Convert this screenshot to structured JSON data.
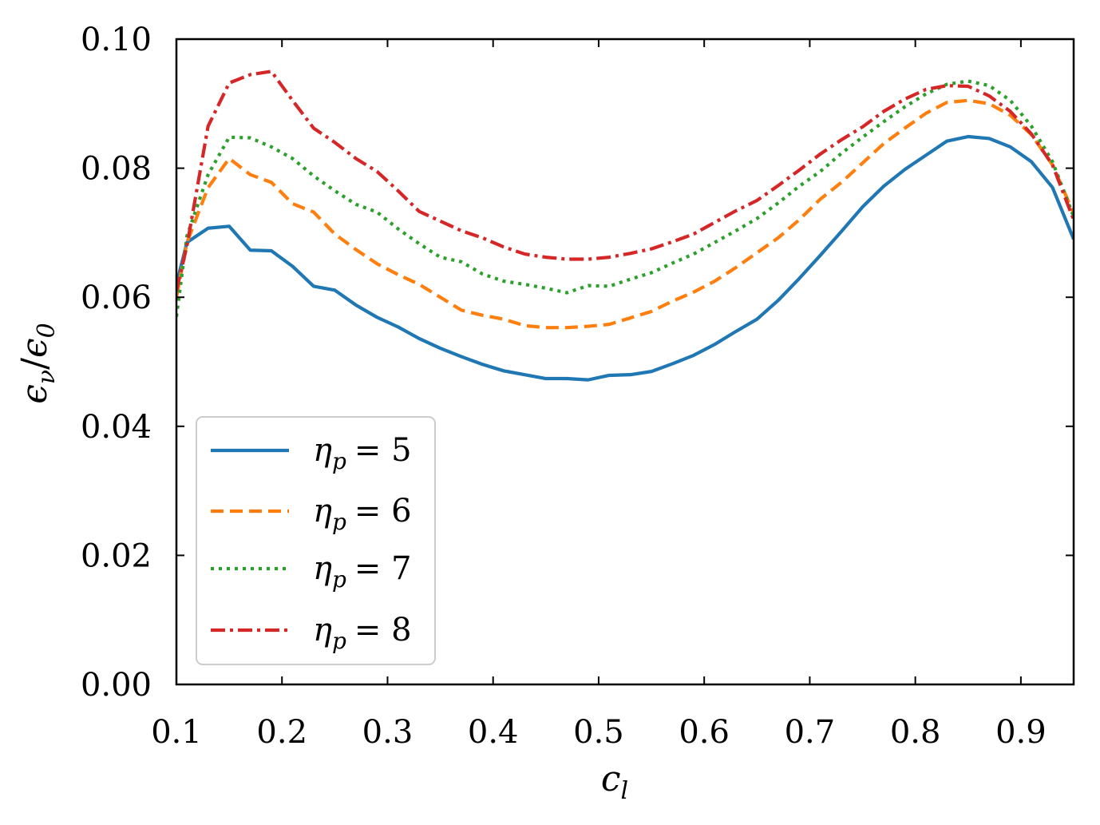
{
  "chart_data": {
    "type": "line",
    "title": "",
    "xlabel": "c_l",
    "xlabel_main": "c",
    "xlabel_sub": "l",
    "ylabel": "ϵ_ν/ϵ_0",
    "ylabel_parts": {
      "a": "ϵ",
      "a_sub": "ν",
      "slash": "/",
      "b": "ϵ",
      "b_sub": "0"
    },
    "xlim": [
      0.1,
      0.95
    ],
    "ylim": [
      0.0,
      0.1
    ],
    "xticks": [
      "0.1",
      "0.2",
      "0.3",
      "0.4",
      "0.5",
      "0.6",
      "0.7",
      "0.8",
      "0.9"
    ],
    "yticks": [
      "0.00",
      "0.02",
      "0.04",
      "0.06",
      "0.08",
      "0.10"
    ],
    "legend_location": "lower-left",
    "x": [
      0.1,
      0.11,
      0.13,
      0.15,
      0.17,
      0.19,
      0.21,
      0.23,
      0.25,
      0.27,
      0.29,
      0.31,
      0.33,
      0.35,
      0.37,
      0.39,
      0.41,
      0.43,
      0.45,
      0.47,
      0.49,
      0.51,
      0.53,
      0.55,
      0.57,
      0.59,
      0.61,
      0.63,
      0.65,
      0.67,
      0.69,
      0.71,
      0.73,
      0.75,
      0.77,
      0.79,
      0.81,
      0.83,
      0.85,
      0.87,
      0.89,
      0.91,
      0.93,
      0.95
    ],
    "series": [
      {
        "name": "η_p = 5",
        "label_main": "η",
        "label_sub": "p",
        "label_value": "= 5",
        "color": "#1f77b4",
        "dash": "solid",
        "values": [
          0.062,
          0.0685,
          0.0707,
          0.071,
          0.0673,
          0.0672,
          0.0648,
          0.0617,
          0.0611,
          0.0588,
          0.0569,
          0.0554,
          0.0536,
          0.0521,
          0.0508,
          0.0496,
          0.0486,
          0.048,
          0.0474,
          0.0474,
          0.0472,
          0.0479,
          0.048,
          0.0485,
          0.0497,
          0.051,
          0.0527,
          0.0547,
          0.0566,
          0.0595,
          0.0629,
          0.0665,
          0.0702,
          0.074,
          0.0772,
          0.0798,
          0.082,
          0.0842,
          0.0849,
          0.0846,
          0.0833,
          0.081,
          0.077,
          0.069
        ]
      },
      {
        "name": "η_p = 6",
        "label_main": "η",
        "label_sub": "p",
        "label_value": "= 6",
        "color": "#ff7f0e",
        "dash": "dashed",
        "values": [
          0.06,
          0.0685,
          0.077,
          0.0815,
          0.079,
          0.0778,
          0.0745,
          0.0732,
          0.0698,
          0.0674,
          0.0652,
          0.0635,
          0.062,
          0.06,
          0.058,
          0.0572,
          0.0566,
          0.0556,
          0.0553,
          0.0553,
          0.0555,
          0.0558,
          0.0568,
          0.0578,
          0.0594,
          0.0608,
          0.0625,
          0.0646,
          0.0669,
          0.0692,
          0.072,
          0.0752,
          0.0778,
          0.0808,
          0.0838,
          0.0862,
          0.0885,
          0.0902,
          0.0905,
          0.09,
          0.0882,
          0.0852,
          0.0805,
          0.073
        ]
      },
      {
        "name": "η_p = 7",
        "label_main": "η",
        "label_sub": "p",
        "label_value": "= 7",
        "color": "#2ca02c",
        "dash": "dotted",
        "values": [
          0.057,
          0.0695,
          0.079,
          0.0848,
          0.0847,
          0.0833,
          0.0815,
          0.0788,
          0.0765,
          0.0744,
          0.0732,
          0.0706,
          0.0683,
          0.0662,
          0.0655,
          0.0636,
          0.0625,
          0.062,
          0.0614,
          0.0607,
          0.0618,
          0.0617,
          0.0628,
          0.0638,
          0.0653,
          0.0667,
          0.0685,
          0.0703,
          0.0722,
          0.0746,
          0.0772,
          0.0795,
          0.0823,
          0.0848,
          0.0872,
          0.0895,
          0.0915,
          0.093,
          0.0935,
          0.0928,
          0.0905,
          0.0865,
          0.081,
          0.0725
        ]
      },
      {
        "name": "η_p = 8",
        "label_main": "η",
        "label_sub": "p",
        "label_value": "= 8",
        "color": "#d62728",
        "dash": "dashdot",
        "values": [
          0.061,
          0.068,
          0.0865,
          0.0932,
          0.0945,
          0.095,
          0.0905,
          0.0862,
          0.084,
          0.0815,
          0.0795,
          0.0765,
          0.0733,
          0.0718,
          0.0703,
          0.0692,
          0.0678,
          0.0667,
          0.0662,
          0.0659,
          0.0659,
          0.0662,
          0.0668,
          0.0675,
          0.0686,
          0.0698,
          0.0716,
          0.0734,
          0.075,
          0.0773,
          0.0797,
          0.0822,
          0.0844,
          0.0864,
          0.0888,
          0.0907,
          0.0922,
          0.0928,
          0.0927,
          0.0912,
          0.0888,
          0.0853,
          0.0805,
          0.072
        ]
      }
    ]
  }
}
